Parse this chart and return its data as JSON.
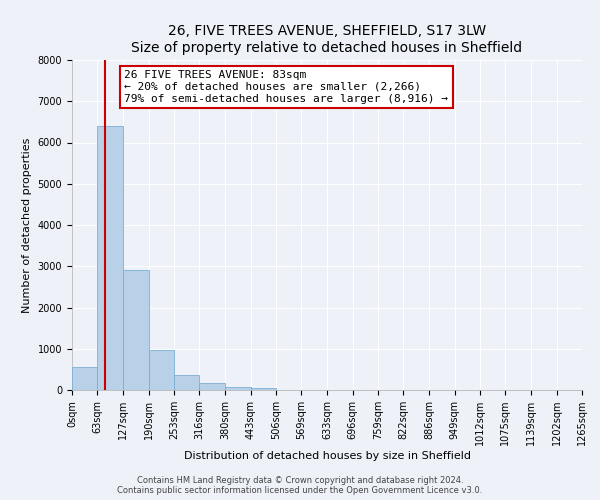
{
  "title": "26, FIVE TREES AVENUE, SHEFFIELD, S17 3LW",
  "subtitle": "Size of property relative to detached houses in Sheffield",
  "xlabel": "Distribution of detached houses by size in Sheffield",
  "ylabel": "Number of detached properties",
  "bin_edges": [
    0,
    63,
    127,
    190,
    253,
    316,
    380,
    443,
    506,
    569,
    633,
    696,
    759,
    822,
    886,
    949,
    1012,
    1075,
    1139,
    1202,
    1265
  ],
  "bar_heights": [
    560,
    6400,
    2920,
    970,
    370,
    180,
    80,
    50,
    0,
    0,
    0,
    0,
    0,
    0,
    0,
    0,
    0,
    0,
    0,
    0
  ],
  "bar_color": "#b8d0e8",
  "bar_edge_color": "#7aafd4",
  "property_line_x": 83,
  "property_line_color": "#cc0000",
  "annotation_line1": "26 FIVE TREES AVENUE: 83sqm",
  "annotation_line2": "← 20% of detached houses are smaller (2,266)",
  "annotation_line3": "79% of semi-detached houses are larger (8,916) →",
  "annotation_box_color": "#ffffff",
  "annotation_box_edge_color": "#cc0000",
  "ylim": [
    0,
    8000
  ],
  "yticks": [
    0,
    1000,
    2000,
    3000,
    4000,
    5000,
    6000,
    7000,
    8000
  ],
  "tick_labels": [
    "0sqm",
    "63sqm",
    "127sqm",
    "190sqm",
    "253sqm",
    "316sqm",
    "380sqm",
    "443sqm",
    "506sqm",
    "569sqm",
    "633sqm",
    "696sqm",
    "759sqm",
    "822sqm",
    "886sqm",
    "949sqm",
    "1012sqm",
    "1075sqm",
    "1139sqm",
    "1202sqm",
    "1265sqm"
  ],
  "footer1": "Contains HM Land Registry data © Crown copyright and database right 2024.",
  "footer2": "Contains public sector information licensed under the Open Government Licence v3.0.",
  "bg_color": "#eef2f8",
  "grid_color": "#ffffff",
  "title_fontsize": 10,
  "subtitle_fontsize": 9,
  "axis_label_fontsize": 8,
  "tick_fontsize": 7,
  "annot_fontsize": 8,
  "footer_fontsize": 6
}
